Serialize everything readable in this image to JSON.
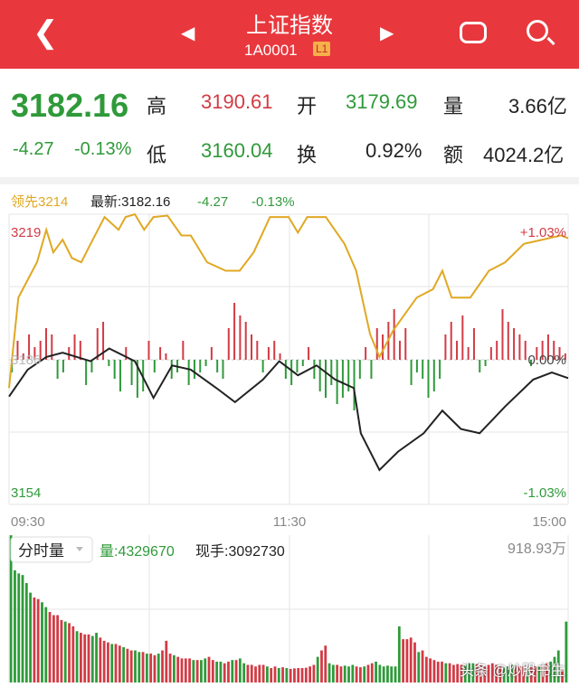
{
  "header": {
    "title": "上证指数",
    "code": "1A0001",
    "level": "L1"
  },
  "quote": {
    "price": "3182.16",
    "change": "-4.27",
    "pct": "-0.13%",
    "high_label": "高",
    "high": "3190.61",
    "open_label": "开",
    "open": "3179.69",
    "vol_label": "量",
    "vol": "3.66亿",
    "low_label": "低",
    "low": "3160.04",
    "turn_label": "换",
    "turn": "0.92%",
    "amt_label": "额",
    "amt": "4024.2亿"
  },
  "legend": {
    "leading": "领先3214",
    "latest": "最新:3182.16",
    "change": "-4.27",
    "pct": "-0.13%"
  },
  "colors": {
    "up": "#d23b45",
    "down": "#2f9a3a",
    "leading": "#e0a823",
    "index": "#222222"
  },
  "chart_data": [
    {
      "type": "line",
      "ylim": [
        3154,
        3219
      ],
      "y_tick_labels": {
        "top": "3219",
        "mid": "3186",
        "bottom": "3154"
      },
      "right_tick_labels": {
        "top": "+1.03%",
        "mid": "0.00%",
        "bottom": "-1.03%"
      },
      "x_tick_labels": [
        "09:30",
        "11:30",
        "15:00"
      ],
      "xlim_minutes": [
        0,
        240
      ],
      "grid": true,
      "series": [
        {
          "name": "领先",
          "unit": "pct",
          "points": [
            [
              0,
              -0.2
            ],
            [
              4,
              0.44
            ],
            [
              12,
              0.69
            ],
            [
              16,
              0.92
            ],
            [
              19,
              0.76
            ],
            [
              23,
              0.85
            ],
            [
              27,
              0.72
            ],
            [
              31,
              0.69
            ],
            [
              35,
              0.82
            ],
            [
              41,
              1.01
            ],
            [
              47,
              0.92
            ],
            [
              50,
              1.01
            ],
            [
              54,
              1.03
            ],
            [
              58,
              0.92
            ],
            [
              62,
              1.01
            ],
            [
              68,
              1.02
            ],
            [
              74,
              0.88
            ],
            [
              78,
              0.88
            ],
            [
              85,
              0.69
            ],
            [
              93,
              0.63
            ],
            [
              99,
              0.63
            ],
            [
              105,
              0.76
            ],
            [
              112,
              1.01
            ],
            [
              120,
              1.01
            ],
            [
              124,
              0.9
            ],
            [
              128,
              1.01
            ],
            [
              136,
              1.01
            ],
            [
              144,
              0.82
            ],
            [
              149,
              0.63
            ],
            [
              155,
              0.18
            ],
            [
              159,
              0.02
            ],
            [
              165,
              0.21
            ],
            [
              175,
              0.44
            ],
            [
              182,
              0.5
            ],
            [
              186,
              0.63
            ],
            [
              190,
              0.44
            ],
            [
              198,
              0.44
            ],
            [
              206,
              0.63
            ],
            [
              213,
              0.69
            ],
            [
              221,
              0.82
            ],
            [
              229,
              0.85
            ],
            [
              237,
              0.88
            ],
            [
              240,
              0.86
            ]
          ]
        },
        {
          "name": "最新",
          "unit": "pct",
          "points": [
            [
              0,
              -0.26
            ],
            [
              8,
              -0.07
            ],
            [
              16,
              0.02
            ],
            [
              23,
              0.05
            ],
            [
              35,
              -0.01
            ],
            [
              43,
              0.08
            ],
            [
              54,
              -0.01
            ],
            [
              62,
              -0.27
            ],
            [
              70,
              -0.04
            ],
            [
              78,
              -0.07
            ],
            [
              89,
              -0.2
            ],
            [
              97,
              -0.3
            ],
            [
              109,
              -0.14
            ],
            [
              116,
              -0.01
            ],
            [
              124,
              -0.11
            ],
            [
              132,
              -0.04
            ],
            [
              140,
              -0.14
            ],
            [
              148,
              -0.2
            ],
            [
              151,
              -0.52
            ],
            [
              159,
              -0.78
            ],
            [
              167,
              -0.65
            ],
            [
              178,
              -0.52
            ],
            [
              186,
              -0.36
            ],
            [
              194,
              -0.49
            ],
            [
              202,
              -0.52
            ],
            [
              213,
              -0.33
            ],
            [
              225,
              -0.14
            ],
            [
              233,
              -0.09
            ],
            [
              240,
              -0.13
            ]
          ]
        }
      ],
      "bars": [
        -2,
        3,
        1,
        4,
        2,
        3,
        5,
        4,
        -3,
        -2,
        2,
        4,
        3,
        -4,
        -2,
        5,
        6,
        -1,
        -3,
        -5,
        2,
        -4,
        -6,
        -5,
        3,
        -2,
        2,
        1,
        -3,
        -2,
        3,
        -4,
        -3,
        -2,
        -1,
        2,
        -2,
        -3,
        5,
        9,
        7,
        6,
        4,
        3,
        -2,
        2,
        3,
        1,
        -3,
        -4,
        -2,
        -1,
        2,
        -3,
        -5,
        -6,
        -4,
        -7,
        -6,
        -5,
        -8,
        -3,
        2,
        -3,
        5,
        4,
        6,
        8,
        3,
        5,
        -4,
        -2,
        -3,
        -6,
        -5,
        -3,
        4,
        6,
        3,
        7,
        2,
        5,
        -2,
        -1,
        2,
        3,
        8,
        6,
        5,
        4,
        3,
        -1,
        2,
        3,
        4,
        3,
        2,
        1
      ]
    },
    {
      "type": "bar",
      "title": "分时量",
      "volume_label": "量:4329670",
      "current_label": "现手:3092730",
      "max_label": "918.93万",
      "ylim": [
        0,
        918.93
      ],
      "values": [
        918,
        700,
        680,
        670,
        620,
        560,
        530,
        520,
        500,
        470,
        440,
        420,
        420,
        390,
        380,
        370,
        350,
        320,
        310,
        300,
        300,
        290,
        310,
        280,
        260,
        250,
        240,
        240,
        230,
        220,
        210,
        200,
        200,
        190,
        190,
        180,
        180,
        170,
        180,
        200,
        260,
        180,
        170,
        160,
        150,
        150,
        150,
        140,
        140,
        140,
        150,
        160,
        140,
        130,
        130,
        120,
        130,
        140,
        140,
        150,
        120,
        110,
        110,
        100,
        110,
        110,
        100,
        90,
        100,
        90,
        95,
        90,
        85,
        88,
        90,
        90,
        92,
        100,
        110,
        160,
        200,
        230,
        120,
        110,
        110,
        100,
        105,
        100,
        110,
        100,
        95,
        100,
        110,
        120,
        130,
        110,
        100,
        105,
        100,
        100,
        350,
        270,
        270,
        280,
        250,
        190,
        200,
        160,
        150,
        140,
        130,
        130,
        120,
        120,
        110,
        115,
        110,
        110,
        120,
        120,
        115,
        110,
        100,
        110,
        120,
        110,
        100,
        95,
        100,
        110,
        105,
        100,
        100,
        95,
        95,
        100,
        100,
        110,
        120,
        130,
        160,
        200,
        80,
        380
      ],
      "colors": "ggggggrrggrrrrgrrgrrrggrrrgrrgrrggrgrrgrrrgrrrrgrggrrggrrgrggrrrrrgrrgrgrrrrrrrgrrggrrgggrrgrrgggggggrrrrgrrrrrrgrrrrgggrrrrrrrgggrrrgrrgrrgggrgrrrrg"
    }
  ],
  "watermark": "头条 @炒股书生"
}
